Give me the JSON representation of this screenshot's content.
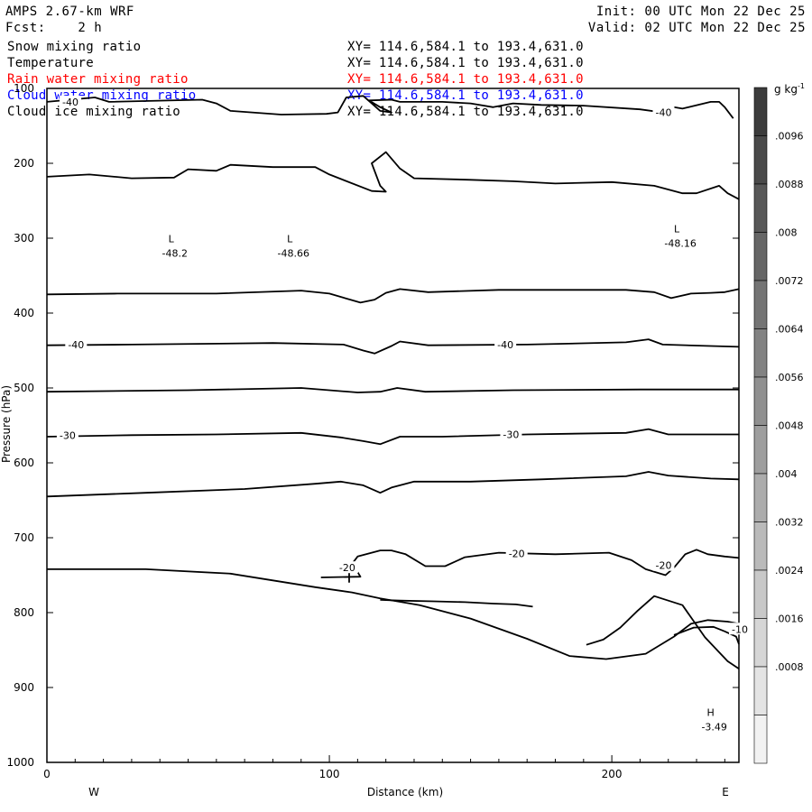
{
  "header": {
    "model": "AMPS 2.67-km WRF",
    "fcst": "Fcst:    2 h",
    "init": "Init: 00 UTC Mon 22 Dec 25",
    "valid": "Valid: 02 UTC Mon 22 Dec 25"
  },
  "layers": [
    {
      "name": "Snow mixing ratio",
      "xy": "XY= 114.6,584.1 to 193.4,631.0",
      "color": "#000000"
    },
    {
      "name": "Temperature",
      "xy": "XY= 114.6,584.1 to 193.4,631.0",
      "color": "#000000"
    },
    {
      "name": "Rain water mixing ratio",
      "xy": "XY= 114.6,584.1 to 193.4,631.0",
      "color": "#ff0000"
    },
    {
      "name": "Cloud water mixing ratio",
      "xy": "XY= 114.6,584.1 to 193.4,631.0",
      "color": "#0000ff"
    },
    {
      "name": "Cloud ice mixing ratio",
      "xy": "XY= 114.6,584.1 to 193.4,631.0",
      "color": "#000000"
    }
  ],
  "chart_data": {
    "type": "contour",
    "xlabel": "Distance (km)",
    "ylabel": "Pressure (hPa)",
    "xlim": [
      0,
      245
    ],
    "ylim": [
      1000,
      100
    ],
    "x_ticks": [
      "0",
      "100",
      "200"
    ],
    "y_ticks": [
      "100",
      "200",
      "300",
      "400",
      "500",
      "600",
      "700",
      "800",
      "900",
      "1000"
    ],
    "west_label": "W",
    "east_label": "E",
    "colorbar": {
      "unit": "g kg",
      "unit_sup": "-1",
      "values": [
        ".0096",
        ".0088",
        ".008",
        ".0072",
        ".0064",
        ".0056",
        ".0048",
        ".004",
        ".0032",
        ".0024",
        ".0016",
        ".0008"
      ],
      "colors": [
        "#3c3c3c",
        "#4a4a4a",
        "#585858",
        "#666666",
        "#747474",
        "#828282",
        "#909090",
        "#9e9e9e",
        "#acacac",
        "#bababa",
        "#c8c8c8",
        "#d6d6d6",
        "#e4e4e4",
        "#f2f2f2"
      ]
    },
    "temperature_contours": [
      {
        "points": [
          [
            0,
            118
          ],
          [
            17,
            112
          ],
          [
            22,
            118
          ],
          [
            55,
            115
          ],
          [
            60,
            120
          ],
          [
            65,
            130
          ],
          [
            83,
            135
          ],
          [
            99,
            134
          ],
          [
            103,
            132
          ],
          [
            106,
            112
          ],
          [
            112,
            110
          ],
          [
            115,
            120
          ],
          [
            118,
            130
          ],
          [
            122,
            132
          ],
          [
            118,
            125
          ],
          [
            114,
            116
          ],
          [
            122,
            115
          ],
          [
            125,
            118
          ],
          [
            140,
            118
          ],
          [
            150,
            120
          ],
          [
            158,
            125
          ],
          [
            165,
            120
          ],
          [
            175,
            122
          ],
          [
            190,
            123
          ],
          [
            210,
            128
          ],
          [
            218,
            132
          ],
          [
            222,
            125
          ],
          [
            225,
            127
          ],
          [
            235,
            118
          ],
          [
            238,
            118
          ],
          [
            240,
            125
          ],
          [
            243,
            140
          ]
        ]
      },
      {
        "points": [
          [
            0,
            218
          ],
          [
            15,
            215
          ],
          [
            30,
            220
          ],
          [
            45,
            219
          ],
          [
            50,
            208
          ],
          [
            60,
            210
          ],
          [
            65,
            202
          ],
          [
            80,
            205
          ],
          [
            95,
            205
          ],
          [
            100,
            215
          ],
          [
            115,
            237
          ],
          [
            120,
            238
          ],
          [
            118,
            230
          ],
          [
            115,
            200
          ],
          [
            120,
            185
          ],
          [
            125,
            207
          ],
          [
            130,
            220
          ],
          [
            150,
            222
          ],
          [
            165,
            224
          ],
          [
            180,
            227
          ],
          [
            200,
            225
          ],
          [
            215,
            230
          ],
          [
            225,
            240
          ],
          [
            230,
            240
          ],
          [
            238,
            230
          ],
          [
            241,
            240
          ],
          [
            245,
            248
          ]
        ]
      },
      {
        "points": [
          [
            0,
            375
          ],
          [
            25,
            374
          ],
          [
            60,
            374
          ],
          [
            90,
            370
          ],
          [
            100,
            374
          ],
          [
            111,
            386
          ],
          [
            116,
            382
          ],
          [
            120,
            373
          ],
          [
            125,
            368
          ],
          [
            135,
            372
          ],
          [
            160,
            369
          ],
          [
            190,
            369
          ],
          [
            205,
            369
          ],
          [
            215,
            372
          ],
          [
            221,
            380
          ],
          [
            228,
            374
          ],
          [
            235,
            373
          ],
          [
            240,
            372
          ],
          [
            245,
            368
          ]
        ]
      },
      {
        "points": [
          [
            0,
            443
          ],
          [
            30,
            442
          ],
          [
            80,
            440
          ],
          [
            105,
            442
          ],
          [
            112,
            450
          ],
          [
            116,
            454
          ],
          [
            122,
            444
          ],
          [
            125,
            438
          ],
          [
            135,
            443
          ],
          [
            170,
            442
          ],
          [
            205,
            439
          ],
          [
            213,
            435
          ],
          [
            218,
            442
          ],
          [
            235,
            444
          ],
          [
            245,
            445
          ]
        ]
      },
      {
        "points": [
          [
            0,
            505
          ],
          [
            50,
            503
          ],
          [
            90,
            500
          ],
          [
            110,
            506
          ],
          [
            118,
            505
          ],
          [
            124,
            500
          ],
          [
            134,
            505
          ],
          [
            165,
            503
          ],
          [
            210,
            502
          ],
          [
            245,
            502
          ]
        ]
      },
      {
        "points": [
          [
            0,
            565
          ],
          [
            30,
            563
          ],
          [
            60,
            562
          ],
          [
            90,
            560
          ],
          [
            104,
            566
          ],
          [
            112,
            571
          ],
          [
            118,
            575
          ],
          [
            125,
            565
          ],
          [
            140,
            565
          ],
          [
            170,
            562
          ],
          [
            205,
            560
          ],
          [
            213,
            555
          ],
          [
            220,
            562
          ],
          [
            245,
            562
          ]
        ]
      },
      {
        "points": [
          [
            0,
            645
          ],
          [
            35,
            640
          ],
          [
            70,
            635
          ],
          [
            95,
            628
          ],
          [
            104,
            625
          ],
          [
            112,
            630
          ],
          [
            118,
            640
          ],
          [
            122,
            633
          ],
          [
            130,
            625
          ],
          [
            150,
            625
          ],
          [
            175,
            622
          ],
          [
            205,
            618
          ],
          [
            213,
            612
          ],
          [
            220,
            617
          ],
          [
            235,
            621
          ],
          [
            245,
            622
          ]
        ]
      },
      {
        "points": [
          [
            107,
            760
          ],
          [
            107,
            740
          ],
          [
            110,
            725
          ],
          [
            118,
            717
          ],
          [
            122,
            717
          ],
          [
            127,
            722
          ],
          [
            134,
            738
          ],
          [
            141,
            738
          ],
          [
            148,
            726
          ],
          [
            160,
            720
          ],
          [
            180,
            722
          ],
          [
            199,
            720
          ],
          [
            207,
            730
          ],
          [
            212,
            742
          ],
          [
            219,
            750
          ],
          [
            222,
            740
          ],
          [
            226,
            722
          ],
          [
            230,
            716
          ],
          [
            234,
            722
          ],
          [
            240,
            725
          ],
          [
            245,
            727
          ]
        ]
      },
      {
        "points": [
          [
            0,
            742
          ],
          [
            35,
            742
          ],
          [
            65,
            748
          ],
          [
            85,
            760
          ],
          [
            95,
            766
          ],
          [
            108,
            773
          ],
          [
            118,
            781
          ],
          [
            132,
            790
          ],
          [
            150,
            808
          ],
          [
            170,
            835
          ],
          [
            185,
            858
          ],
          [
            198,
            862
          ],
          [
            212,
            855
          ],
          [
            222,
            832
          ],
          [
            228,
            815
          ],
          [
            234,
            810
          ],
          [
            241,
            812
          ],
          [
            245,
            815
          ]
        ]
      },
      {
        "points": [
          [
            222,
            830
          ],
          [
            229,
            820
          ],
          [
            236,
            819
          ],
          [
            240,
            825
          ],
          [
            244,
            832
          ],
          [
            245,
            842
          ]
        ]
      },
      {
        "points": [
          [
            97,
            753
          ],
          [
            111,
            752
          ],
          [
            110,
            746
          ]
        ]
      },
      {
        "points": [
          [
            118,
            783
          ],
          [
            125,
            784
          ],
          [
            137,
            785
          ],
          [
            148,
            786
          ],
          [
            158,
            788
          ],
          [
            166,
            789
          ],
          [
            172,
            792
          ]
        ]
      },
      {
        "points": [
          [
            191,
            843
          ],
          [
            197,
            836
          ],
          [
            203,
            820
          ],
          [
            209,
            798
          ],
          [
            215,
            778
          ],
          [
            225,
            790
          ],
          [
            233,
            833
          ],
          [
            241,
            865
          ],
          [
            245,
            875
          ]
        ]
      }
    ],
    "contour_labels": [
      {
        "text": "-40",
        "x": 8,
        "y": 118
      },
      {
        "text": "-40",
        "x": 218,
        "y": 132
      },
      {
        "text": "-40",
        "x": 10,
        "y": 442
      },
      {
        "text": "-40",
        "x": 162,
        "y": 442
      },
      {
        "text": "-30",
        "x": 7,
        "y": 563
      },
      {
        "text": "-30",
        "x": 164,
        "y": 562
      },
      {
        "text": "-20",
        "x": 166,
        "y": 721
      },
      {
        "text": "-20",
        "x": 106,
        "y": 740
      },
      {
        "text": "-20",
        "x": 218,
        "y": 737
      },
      {
        "text": "-10",
        "x": 245,
        "y": 822
      }
    ],
    "annotations": [
      {
        "mark": "L",
        "value": "-48.2",
        "x": 44,
        "y": 322
      },
      {
        "mark": "L",
        "value": "-48.66",
        "x": 86,
        "y": 322
      },
      {
        "mark": "L",
        "value": "-48.16",
        "x": 223,
        "y": 309
      },
      {
        "mark": "H",
        "value": "-3.49",
        "x": 235,
        "y": 955
      }
    ]
  }
}
